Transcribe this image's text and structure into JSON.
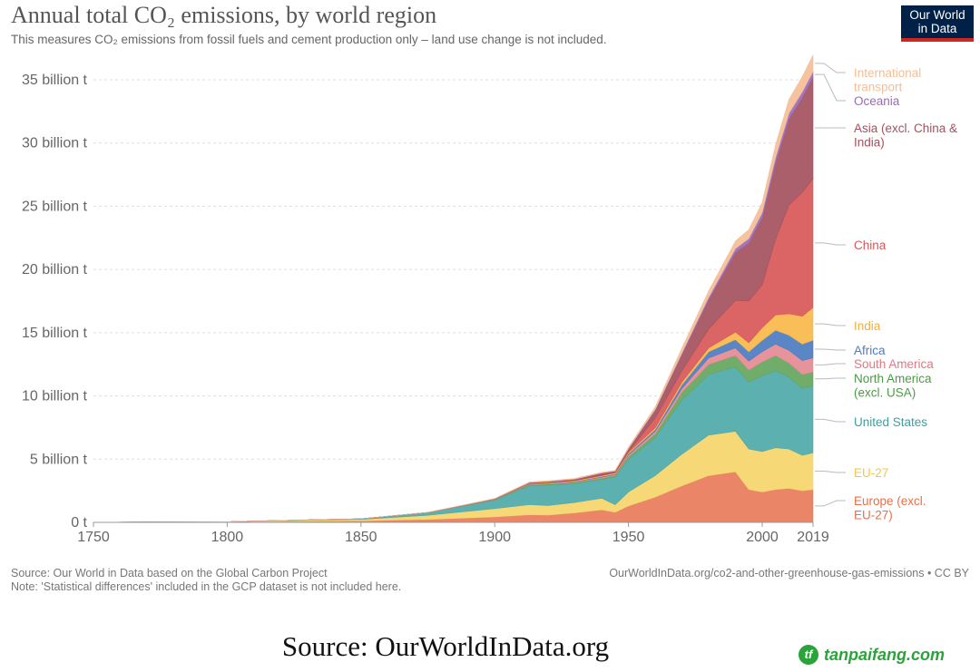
{
  "header": {
    "title": "Annual total CO₂ emissions, by world region",
    "subtitle": "This measures CO₂ emissions from fossil fuels and cement production only – land use change is not included.",
    "logo_line1": "Our World",
    "logo_line2": "in Data"
  },
  "footer": {
    "source": "Source: Our World in Data based on the Global Carbon Project",
    "note": "Note: 'Statistical differences' included in the GCP dataset is not included here.",
    "url": "OurWorldInData.org/co2-and-other-greenhouse-gas-emissions • CC BY"
  },
  "caption": "Source: OurWorldInData.org",
  "watermark": {
    "icon": "tf",
    "text": "tanpaifang.com",
    "color": "#2aa43a"
  },
  "chart_data": {
    "type": "area",
    "stacked": true,
    "title": "Annual total CO₂ emissions, by world region",
    "xlabel": "",
    "ylabel": "",
    "xlim": [
      1750,
      2019
    ],
    "ylim": [
      0,
      35
    ],
    "grid": true,
    "y_ticks": [
      0,
      5,
      10,
      15,
      20,
      25,
      30,
      35
    ],
    "y_tick_labels": [
      "0 t",
      "5 billion t",
      "10 billion t",
      "15 billion t",
      "20 billion t",
      "25 billion t",
      "30 billion t",
      "35 billion t"
    ],
    "x_ticks": [
      1750,
      1800,
      1850,
      1900,
      1950,
      2000,
      2019
    ],
    "x_tick_labels": [
      "1750",
      "1800",
      "1850",
      "1900",
      "1950",
      "2000",
      "2019"
    ],
    "x": [
      1750,
      1800,
      1850,
      1875,
      1900,
      1913,
      1920,
      1930,
      1940,
      1945,
      1950,
      1960,
      1970,
      1980,
      1990,
      1995,
      2000,
      2005,
      2010,
      2015,
      2019
    ],
    "series": [
      {
        "name": "Europe (excl. EU-27)",
        "color": "#e87c5a",
        "values": [
          0.01,
          0.03,
          0.12,
          0.24,
          0.44,
          0.6,
          0.58,
          0.75,
          1.0,
          0.8,
          1.3,
          2.0,
          2.9,
          3.7,
          4.0,
          2.6,
          2.4,
          2.6,
          2.7,
          2.5,
          2.6
        ]
      },
      {
        "name": "EU-27",
        "color": "#f5d66a",
        "values": [
          0.0,
          0.02,
          0.12,
          0.32,
          0.65,
          0.8,
          0.75,
          0.82,
          0.9,
          0.6,
          1.1,
          1.7,
          2.5,
          3.2,
          3.2,
          3.2,
          3.2,
          3.3,
          3.1,
          2.8,
          2.9
        ]
      },
      {
        "name": "United States",
        "color": "#4ea9a9",
        "values": [
          0.0,
          0.0,
          0.05,
          0.2,
          0.66,
          1.5,
          1.6,
          1.5,
          1.5,
          2.2,
          2.6,
          3.0,
          4.3,
          4.8,
          5.1,
          5.3,
          6.0,
          6.1,
          5.7,
          5.3,
          5.3
        ]
      },
      {
        "name": "North America (excl. USA)",
        "color": "#65a65d",
        "values": [
          0.0,
          0.0,
          0.0,
          0.01,
          0.04,
          0.1,
          0.1,
          0.1,
          0.1,
          0.1,
          0.2,
          0.3,
          0.6,
          0.8,
          0.9,
          0.95,
          1.1,
          1.2,
          1.1,
          1.1,
          1.1
        ]
      },
      {
        "name": "South America",
        "color": "#e58a92",
        "values": [
          0.0,
          0.0,
          0.0,
          0.01,
          0.02,
          0.03,
          0.05,
          0.06,
          0.07,
          0.08,
          0.13,
          0.2,
          0.3,
          0.5,
          0.6,
          0.7,
          0.8,
          0.9,
          1.0,
          1.1,
          1.1
        ]
      },
      {
        "name": "Africa",
        "color": "#4d7cc1",
        "values": [
          0.0,
          0.0,
          0.0,
          0.0,
          0.01,
          0.02,
          0.03,
          0.03,
          0.05,
          0.06,
          0.1,
          0.15,
          0.3,
          0.5,
          0.65,
          0.75,
          0.9,
          1.1,
          1.2,
          1.3,
          1.4
        ]
      },
      {
        "name": "India",
        "color": "#f9b949",
        "values": [
          0.0,
          0.0,
          0.0,
          0.01,
          0.02,
          0.03,
          0.04,
          0.05,
          0.07,
          0.08,
          0.1,
          0.13,
          0.2,
          0.3,
          0.6,
          0.7,
          1.0,
          1.2,
          1.7,
          2.2,
          2.6
        ]
      },
      {
        "name": "China",
        "color": "#d85858",
        "values": [
          0.0,
          0.0,
          0.0,
          0.0,
          0.0,
          0.01,
          0.01,
          0.01,
          0.05,
          0.02,
          0.08,
          0.8,
          0.9,
          1.5,
          2.5,
          3.3,
          3.4,
          6.0,
          8.6,
          9.8,
          10.2
        ]
      },
      {
        "name": "Asia (excl. China & India)",
        "color": "#a4515d",
        "values": [
          0.0,
          0.0,
          0.0,
          0.0,
          0.02,
          0.05,
          0.07,
          0.1,
          0.15,
          0.1,
          0.2,
          0.6,
          1.3,
          2.3,
          3.8,
          4.6,
          5.3,
          6.0,
          6.8,
          7.5,
          8.0
        ]
      },
      {
        "name": "Oceania",
        "color": "#9b6bbb",
        "values": [
          0.0,
          0.0,
          0.0,
          0.0,
          0.01,
          0.01,
          0.01,
          0.01,
          0.02,
          0.02,
          0.03,
          0.05,
          0.1,
          0.2,
          0.3,
          0.35,
          0.4,
          0.45,
          0.45,
          0.45,
          0.45
        ]
      },
      {
        "name": "International transport",
        "color": "#f4be95",
        "values": [
          0.0,
          0.0,
          0.0,
          0.0,
          0.02,
          0.05,
          0.05,
          0.05,
          0.05,
          0.05,
          0.1,
          0.2,
          0.4,
          0.5,
          0.6,
          0.7,
          0.8,
          1.0,
          1.1,
          1.2,
          1.3
        ]
      }
    ],
    "legend_position": "right",
    "legend": [
      {
        "lines": [
          "International",
          "transport"
        ],
        "color": "#f4be95"
      },
      {
        "lines": [
          "Oceania"
        ],
        "color": "#9b6bbb"
      },
      {
        "lines": [
          "Asia (excl. China &",
          "India)"
        ],
        "color": "#a4515d"
      },
      {
        "lines": [
          "China"
        ],
        "color": "#d85858"
      },
      {
        "lines": [
          "India"
        ],
        "color": "#f2b03f"
      },
      {
        "lines": [
          "Africa"
        ],
        "color": "#4d7cc1"
      },
      {
        "lines": [
          "South America"
        ],
        "color": "#e07883"
      },
      {
        "lines": [
          "North America",
          "(excl. USA)"
        ],
        "color": "#4e9a46"
      },
      {
        "lines": [
          "United States"
        ],
        "color": "#3e9f9f"
      },
      {
        "lines": [
          "EU-27"
        ],
        "color": "#f2c74a"
      },
      {
        "lines": [
          "Europe (excl.",
          "EU-27)"
        ],
        "color": "#e6704a"
      }
    ]
  }
}
